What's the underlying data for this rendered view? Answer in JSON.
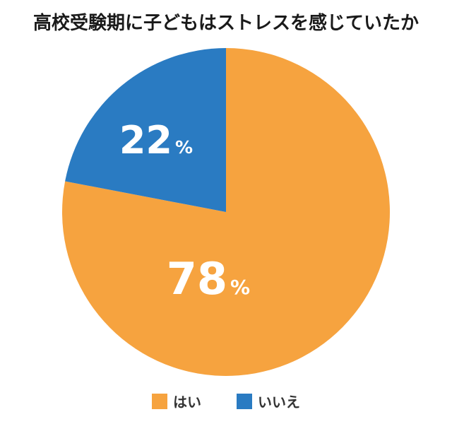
{
  "chart_data": {
    "type": "pie",
    "title": "高校受験期に子どもはストレスを感じていたか",
    "categories": [
      "はい",
      "いいえ"
    ],
    "values": [
      78,
      22
    ],
    "unit": "%",
    "labels": [
      "78",
      "22"
    ],
    "colors": [
      "#F6A33F",
      "#2A7BC2"
    ],
    "legend_position": "bottom",
    "start_angle": "12 o'clock, clockwise"
  },
  "legend": {
    "items": [
      {
        "label": "はい",
        "color": "#F6A33F"
      },
      {
        "label": "いいえ",
        "color": "#2A7BC2"
      }
    ]
  },
  "slices": {
    "yes": {
      "value": "78",
      "unit": "%"
    },
    "no": {
      "value": "22",
      "unit": "%"
    }
  }
}
